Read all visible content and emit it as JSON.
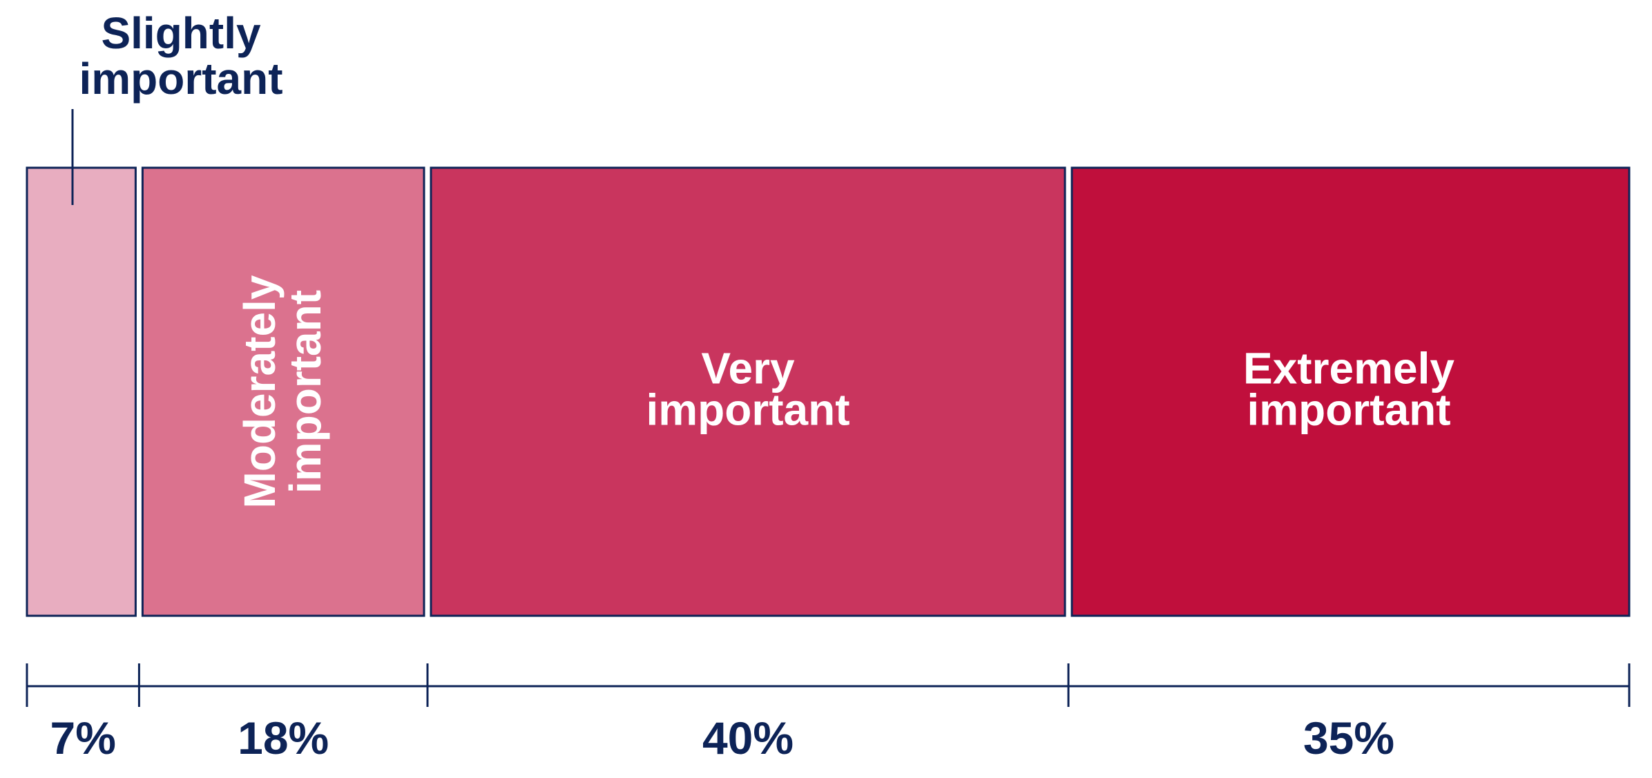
{
  "chart_data": {
    "type": "bar",
    "orientation": "horizontal-stacked",
    "unit": "%",
    "categories": [
      "Slightly important",
      "Moderately important",
      "Very important",
      "Extremely important"
    ],
    "label_lines": [
      [
        "Slightly",
        "important"
      ],
      [
        "Moderately",
        "important"
      ],
      [
        "Very",
        "important"
      ],
      [
        "Extremely",
        "important"
      ]
    ],
    "values": [
      7,
      18,
      40,
      35
    ],
    "value_labels": [
      "7%",
      "18%",
      "40%",
      "35%"
    ],
    "colors": [
      "#e8adc0",
      "#db728e",
      "#c9355e",
      "#c00f3c"
    ],
    "outline_color": "#0d2357",
    "text_color": "#0d2357",
    "label_text_color": "#ffffff",
    "label_placement": [
      "callout-above",
      "inside-vertical",
      "inside",
      "inside"
    ],
    "title": "",
    "xlabel": "",
    "ylabel": "",
    "grid": false,
    "legend": "none"
  }
}
